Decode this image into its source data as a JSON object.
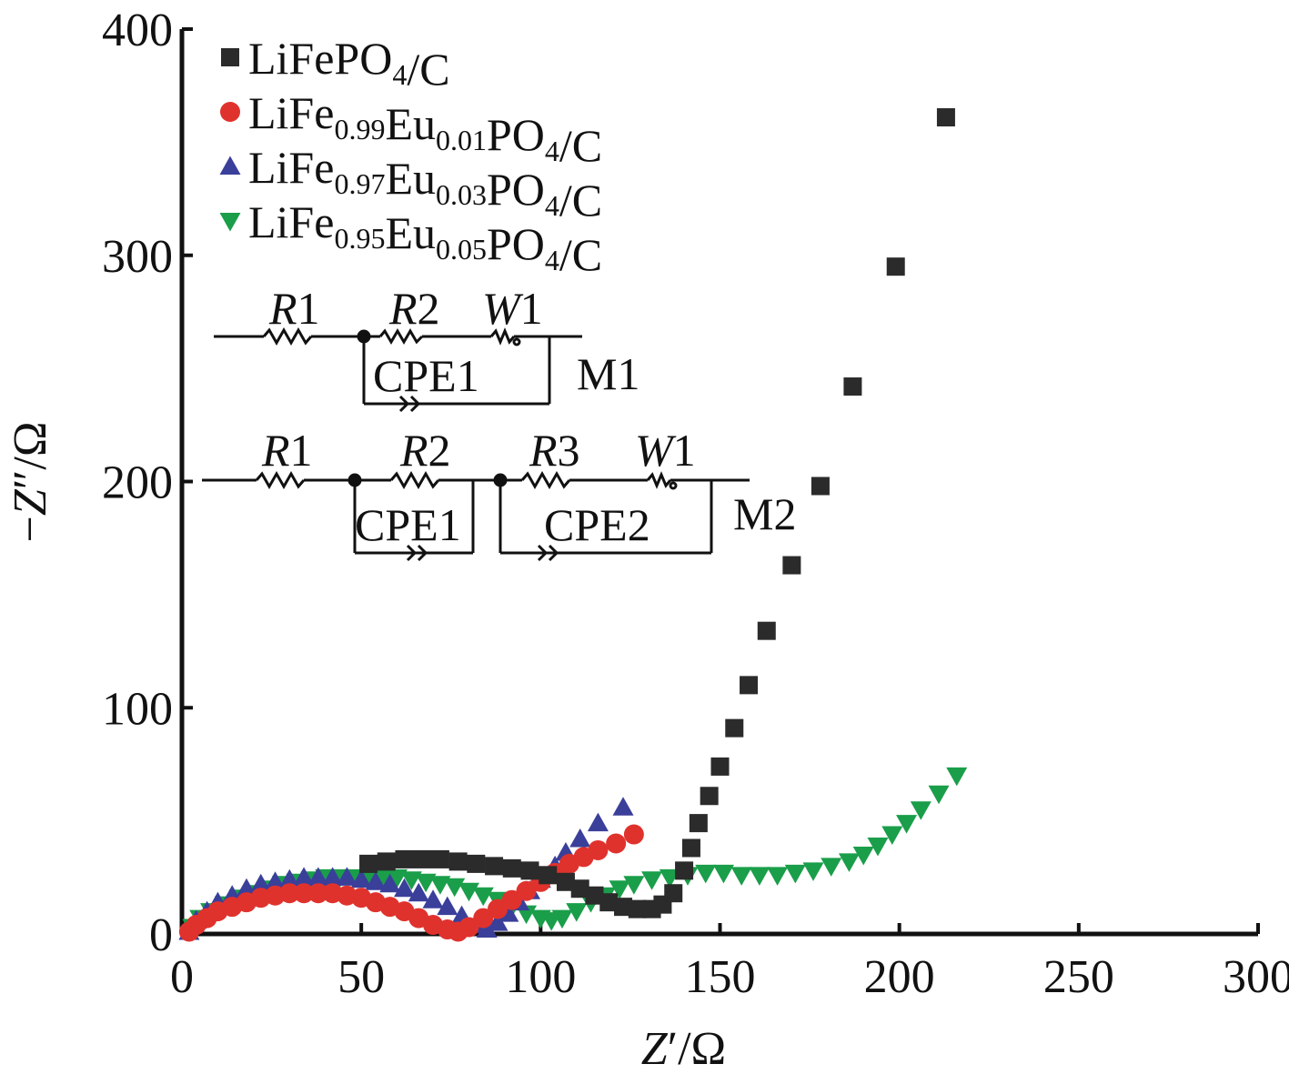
{
  "chart_data": {
    "type": "scatter",
    "title": "",
    "xlabel": {
      "italic": "Z",
      "rest": "′/Ω"
    },
    "ylabel": {
      "prefix": "−",
      "italic": "Z",
      "rest": "″/Ω"
    },
    "xlim": [
      0,
      300
    ],
    "ylim": [
      0,
      400
    ],
    "xticks": [
      "0",
      "50",
      "100",
      "150",
      "200",
      "250",
      "300"
    ],
    "yticks": [
      "0",
      "100",
      "200",
      "300",
      "400"
    ],
    "grid": false,
    "legend_position": "top-left",
    "series": [
      {
        "name": "LiFePO4/C",
        "name_parts": [
          [
            "LiFePO",
            ""
          ],
          [
            "4",
            "sub"
          ],
          [
            "/C",
            ""
          ]
        ],
        "marker": "square",
        "color": "#2b2b2b",
        "points": [
          [
            52,
            31
          ],
          [
            57,
            32
          ],
          [
            62,
            33
          ],
          [
            67,
            33
          ],
          [
            72,
            33
          ],
          [
            77,
            32
          ],
          [
            82,
            31
          ],
          [
            87,
            30
          ],
          [
            92,
            29
          ],
          [
            97,
            28
          ],
          [
            102,
            26
          ],
          [
            107,
            23
          ],
          [
            111,
            20
          ],
          [
            115,
            17
          ],
          [
            119,
            14
          ],
          [
            123,
            12
          ],
          [
            127,
            11
          ],
          [
            131,
            11
          ],
          [
            134,
            13
          ],
          [
            137,
            18
          ],
          [
            140,
            28
          ],
          [
            142,
            38
          ],
          [
            144,
            49
          ],
          [
            147,
            61
          ],
          [
            150,
            74
          ],
          [
            154,
            91
          ],
          [
            158,
            110
          ],
          [
            163,
            134
          ],
          [
            170,
            163
          ],
          [
            178,
            198
          ],
          [
            187,
            242
          ],
          [
            199,
            295
          ],
          [
            213,
            361
          ]
        ]
      },
      {
        "name": "LiFe0.99Eu0.01PO4/C",
        "name_parts": [
          [
            "LiFe",
            ""
          ],
          [
            "0.99",
            "sub"
          ],
          [
            "Eu",
            ""
          ],
          [
            "0.01",
            "sub"
          ],
          [
            "PO",
            ""
          ],
          [
            "4",
            "sub"
          ],
          [
            "/C",
            ""
          ]
        ],
        "marker": "circle",
        "color": "#e0322d",
        "points": [
          [
            2,
            1
          ],
          [
            4,
            4
          ],
          [
            7,
            7
          ],
          [
            10,
            10
          ],
          [
            14,
            12
          ],
          [
            18,
            14
          ],
          [
            22,
            16
          ],
          [
            26,
            17
          ],
          [
            30,
            18
          ],
          [
            34,
            18
          ],
          [
            38,
            18
          ],
          [
            42,
            18
          ],
          [
            46,
            17
          ],
          [
            50,
            16
          ],
          [
            54,
            14
          ],
          [
            58,
            12
          ],
          [
            62,
            10
          ],
          [
            66,
            7
          ],
          [
            70,
            4
          ],
          [
            74,
            2
          ],
          [
            77,
            1
          ],
          [
            80,
            3
          ],
          [
            84,
            7
          ],
          [
            88,
            11
          ],
          [
            92,
            15
          ],
          [
            96,
            19
          ],
          [
            100,
            23
          ],
          [
            104,
            27
          ],
          [
            108,
            31
          ],
          [
            112,
            34
          ],
          [
            116,
            37
          ],
          [
            121,
            40
          ],
          [
            126,
            44
          ]
        ]
      },
      {
        "name": "LiFe0.97Eu0.03PO4/C",
        "name_parts": [
          [
            "LiFe",
            ""
          ],
          [
            "0.97",
            "sub"
          ],
          [
            "Eu",
            ""
          ],
          [
            "0.03",
            "sub"
          ],
          [
            "PO",
            ""
          ],
          [
            "4",
            "sub"
          ],
          [
            "/C",
            ""
          ]
        ],
        "marker": "triangle-up",
        "color": "#3a3f9a",
        "points": [
          [
            2,
            1
          ],
          [
            4,
            6
          ],
          [
            7,
            10
          ],
          [
            10,
            14
          ],
          [
            14,
            17
          ],
          [
            18,
            20
          ],
          [
            22,
            22
          ],
          [
            26,
            23
          ],
          [
            30,
            24
          ],
          [
            34,
            25
          ],
          [
            38,
            25
          ],
          [
            42,
            25
          ],
          [
            46,
            25
          ],
          [
            50,
            24
          ],
          [
            54,
            23
          ],
          [
            58,
            22
          ],
          [
            62,
            20
          ],
          [
            66,
            18
          ],
          [
            70,
            15
          ],
          [
            74,
            12
          ],
          [
            78,
            8
          ],
          [
            82,
            4
          ],
          [
            85,
            2
          ],
          [
            88,
            5
          ],
          [
            91,
            9
          ],
          [
            94,
            14
          ],
          [
            97,
            19
          ],
          [
            100,
            24
          ],
          [
            104,
            30
          ],
          [
            107,
            36
          ],
          [
            111,
            42
          ],
          [
            116,
            49
          ],
          [
            123,
            56
          ]
        ]
      },
      {
        "name": "LiFe0.95Eu0.05PO4/C",
        "name_parts": [
          [
            "LiFe",
            ""
          ],
          [
            "0.95",
            "sub"
          ],
          [
            "Eu",
            ""
          ],
          [
            "0.05",
            "sub"
          ],
          [
            "PO",
            ""
          ],
          [
            "4",
            "sub"
          ],
          [
            "/C",
            ""
          ]
        ],
        "marker": "triangle-down",
        "color": "#1a9e4a",
        "points": [
          [
            3,
            3
          ],
          [
            5,
            7
          ],
          [
            8,
            10
          ],
          [
            12,
            13
          ],
          [
            16,
            16
          ],
          [
            20,
            18
          ],
          [
            24,
            20
          ],
          [
            28,
            22
          ],
          [
            32,
            23
          ],
          [
            36,
            24
          ],
          [
            40,
            25
          ],
          [
            44,
            25
          ],
          [
            48,
            25
          ],
          [
            52,
            25
          ],
          [
            56,
            25
          ],
          [
            60,
            25
          ],
          [
            64,
            24
          ],
          [
            68,
            23
          ],
          [
            72,
            22
          ],
          [
            76,
            21
          ],
          [
            80,
            19
          ],
          [
            84,
            17
          ],
          [
            88,
            15
          ],
          [
            92,
            12
          ],
          [
            96,
            9
          ],
          [
            100,
            7
          ],
          [
            103,
            6
          ],
          [
            106,
            7
          ],
          [
            110,
            10
          ],
          [
            114,
            14
          ],
          [
            118,
            17
          ],
          [
            122,
            20
          ],
          [
            126,
            22
          ],
          [
            131,
            24
          ],
          [
            136,
            25
          ],
          [
            141,
            26
          ],
          [
            146,
            27
          ],
          [
            151,
            27
          ],
          [
            156,
            26
          ],
          [
            161,
            26
          ],
          [
            166,
            26
          ],
          [
            171,
            27
          ],
          [
            176,
            28
          ],
          [
            181,
            30
          ],
          [
            186,
            32
          ],
          [
            190,
            35
          ],
          [
            194,
            39
          ],
          [
            198,
            44
          ],
          [
            202,
            49
          ],
          [
            206,
            55
          ],
          [
            211,
            62
          ],
          [
            216,
            70
          ]
        ]
      }
    ],
    "inset_circuits": [
      {
        "label": "M1",
        "components": [
          "R1",
          "R2",
          "W1",
          "CPE1"
        ]
      },
      {
        "label": "M2",
        "components": [
          "R1",
          "R2",
          "R3",
          "W1",
          "CPE1",
          "CPE2"
        ]
      }
    ]
  }
}
